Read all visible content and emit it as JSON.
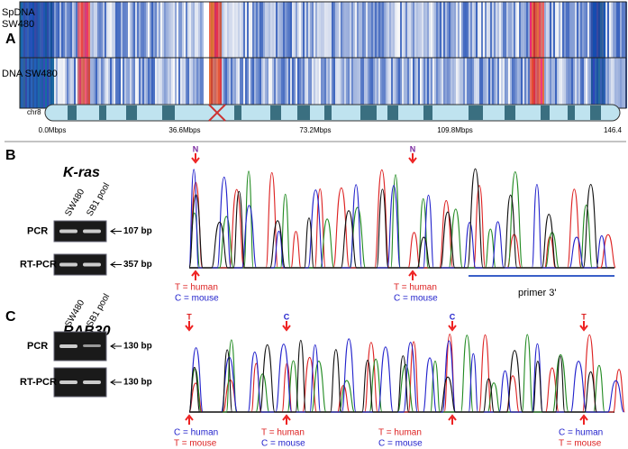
{
  "panel_a": {
    "letter": "A",
    "row_labels": [
      "SpDNA SW480",
      "DNA SW480"
    ],
    "chromosome": "chr8",
    "axis_labels": [
      "0.0Mbps",
      "36.6Mbps",
      "73.2Mbps",
      "109.8Mbps",
      "146.4"
    ]
  },
  "panel_b": {
    "letter": "B",
    "gene": "K-ras",
    "lanes": [
      "SW480",
      "SB1 pool"
    ],
    "rows": [
      "PCR",
      "RT-PCR"
    ],
    "sizes": [
      "107 bp",
      "357 bp"
    ],
    "markers": [
      "N",
      "N"
    ],
    "annotations": [
      [
        "T = human",
        "C = mouse"
      ],
      [
        "T = human",
        "C = mouse"
      ]
    ],
    "primer": "primer 3'"
  },
  "panel_c": {
    "letter": "C",
    "gene": "RAB30",
    "lanes": [
      "SW480",
      "SB1 pool"
    ],
    "rows": [
      "PCR",
      "RT-PCR"
    ],
    "sizes": [
      "130 bp",
      "130 bp"
    ],
    "markers": [
      "T",
      "C",
      "C",
      "T"
    ],
    "annotations": [
      [
        "C = human",
        "T = mouse"
      ],
      [
        "T = human",
        "C = mouse"
      ],
      [
        "T = human",
        "C = mouse"
      ],
      [
        "C = human",
        "T = mouse"
      ]
    ]
  }
}
